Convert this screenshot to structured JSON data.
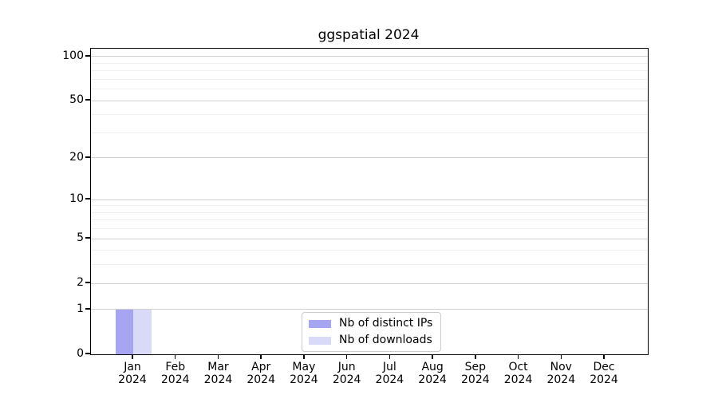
{
  "chart_data": {
    "type": "bar",
    "title": "ggspatial 2024",
    "xlabel": "",
    "ylabel": "",
    "categories": [
      "Jan",
      "Feb",
      "Mar",
      "Apr",
      "May",
      "Jun",
      "Jul",
      "Aug",
      "Sep",
      "Oct",
      "Nov",
      "Dec"
    ],
    "category_year": "2024",
    "series": [
      {
        "name": "Nb of distinct IPs",
        "color": "#a5a5f2",
        "values": [
          1,
          0,
          0,
          0,
          0,
          0,
          0,
          0,
          0,
          0,
          0,
          0
        ]
      },
      {
        "name": "Nb of downloads",
        "color": "#d9d9f8",
        "values": [
          1,
          0,
          0,
          0,
          0,
          0,
          0,
          0,
          0,
          0,
          0,
          0
        ]
      }
    ],
    "yscale": "log1p",
    "ylim": [
      0,
      113.3
    ],
    "yticks_labeled": [
      0,
      1,
      2,
      5,
      10,
      20,
      50,
      100
    ],
    "yticks_minor": [
      3,
      4,
      6,
      7,
      8,
      9,
      30,
      40,
      60,
      70,
      80,
      90
    ],
    "grid": true,
    "legend_position": "lower center",
    "colors": {
      "grid_major": "#d0d0d0",
      "grid_minor": "#f0f0f0",
      "axis": "#000000",
      "background": "#ffffff",
      "legend_border": "#cccccc"
    }
  }
}
